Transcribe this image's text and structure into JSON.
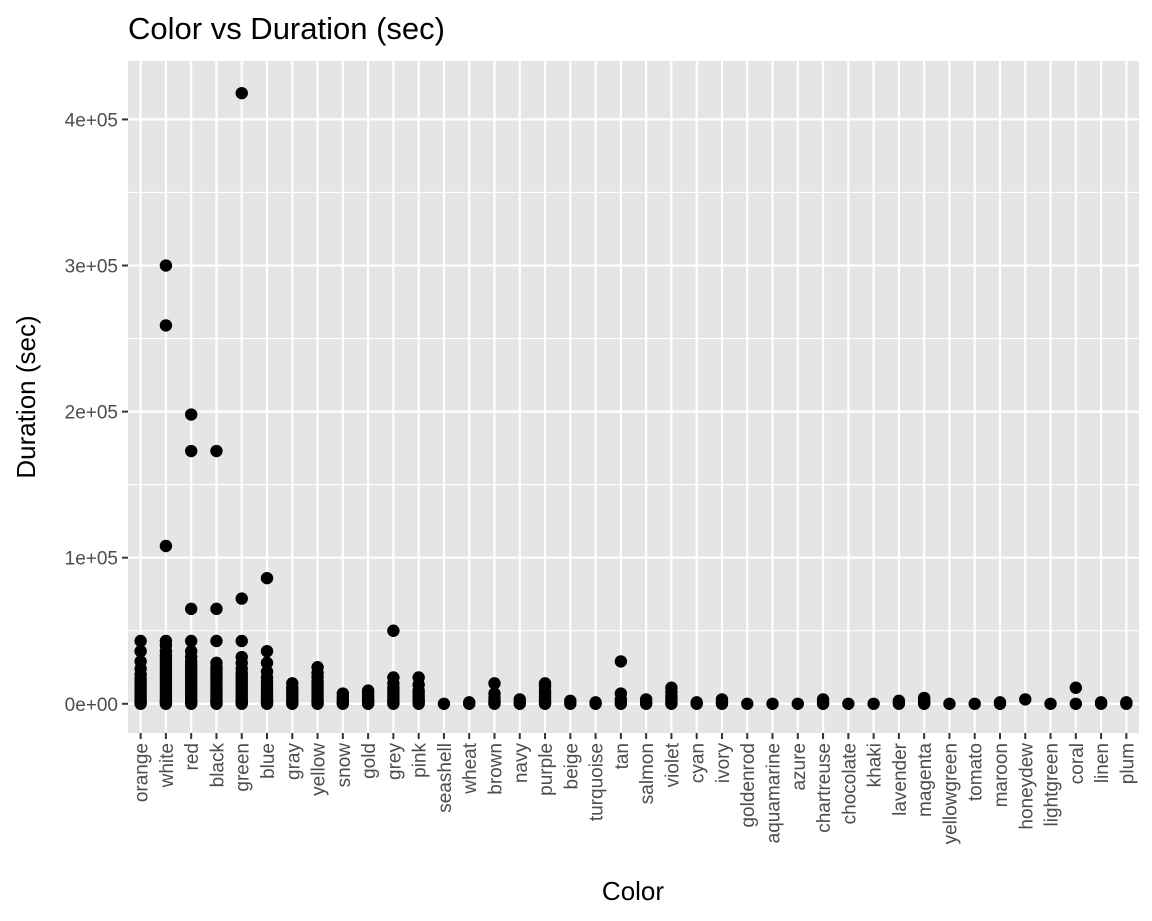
{
  "chart_data": {
    "type": "scatter",
    "title": "Color vs Duration (sec)",
    "xlabel": "Color",
    "ylabel": "Duration (sec)",
    "categories": [
      "orange",
      "white",
      "red",
      "black",
      "green",
      "blue",
      "gray",
      "yellow",
      "snow",
      "gold",
      "grey",
      "pink",
      "seashell",
      "wheat",
      "brown",
      "navy",
      "purple",
      "beige",
      "turquoise",
      "tan",
      "salmon",
      "violet",
      "cyan",
      "ivory",
      "goldenrod",
      "aquamarine",
      "azure",
      "chartreuse",
      "chocolate",
      "khaki",
      "lavender",
      "magenta",
      "yellowgreen",
      "tomato",
      "maroon",
      "honeydew",
      "lightgreen",
      "coral",
      "linen",
      "plum"
    ],
    "ylim": [
      -20000,
      440000
    ],
    "yticks": [
      0,
      100000,
      200000,
      300000,
      400000
    ],
    "ytick_labels": [
      "0e+00",
      "1e+05",
      "2e+05",
      "3e+05",
      "4e+05"
    ],
    "grid": true,
    "point_color": "#000000",
    "panel_background": "#e5e5e5",
    "gridline_color": "#ffffff",
    "series": [
      {
        "category": "orange",
        "values": [
          0,
          1000,
          2000,
          3000,
          5000,
          7000,
          9000,
          11000,
          13000,
          15000,
          17000,
          20000,
          24000,
          29000,
          36000,
          43000
        ]
      },
      {
        "category": "white",
        "values": [
          0,
          1000,
          2000,
          3000,
          5000,
          7000,
          9000,
          11000,
          13000,
          15000,
          17000,
          19000,
          21000,
          23000,
          25000,
          27000,
          29000,
          31000,
          33000,
          36000,
          40000,
          43000,
          108000,
          259000,
          300000
        ]
      },
      {
        "category": "red",
        "values": [
          0,
          1000,
          2000,
          3000,
          5000,
          7000,
          9000,
          11000,
          13000,
          15000,
          17000,
          19000,
          21000,
          23000,
          25000,
          27000,
          29000,
          32000,
          36000,
          43000,
          65000,
          173000,
          198000
        ]
      },
      {
        "category": "black",
        "values": [
          0,
          1000,
          2000,
          3000,
          5000,
          7000,
          9000,
          11000,
          13000,
          15000,
          17000,
          19000,
          21000,
          23000,
          25000,
          28000,
          43000,
          65000,
          173000
        ]
      },
      {
        "category": "green",
        "values": [
          0,
          1000,
          2000,
          3000,
          5000,
          7000,
          9000,
          11000,
          13000,
          15000,
          17000,
          19000,
          21000,
          24000,
          28000,
          32000,
          43000,
          72000,
          418000
        ]
      },
      {
        "category": "blue",
        "values": [
          0,
          1000,
          2000,
          3000,
          5000,
          7000,
          9000,
          11000,
          13000,
          15000,
          18000,
          22000,
          28000,
          36000,
          86000
        ]
      },
      {
        "category": "gray",
        "values": [
          0,
          1000,
          2000,
          3000,
          5000,
          7000,
          9000,
          11000,
          14000
        ]
      },
      {
        "category": "yellow",
        "values": [
          0,
          1000,
          2000,
          3000,
          5000,
          7000,
          9000,
          11000,
          13000,
          15000,
          18000,
          21000,
          25000
        ]
      },
      {
        "category": "snow",
        "values": [
          0,
          1000,
          2000,
          3000,
          5000,
          7000
        ]
      },
      {
        "category": "gold",
        "values": [
          0,
          1000,
          2000,
          3000,
          5000,
          7000,
          9000
        ]
      },
      {
        "category": "grey",
        "values": [
          0,
          1000,
          2000,
          3000,
          5000,
          7000,
          9000,
          11000,
          14000,
          18000,
          50000
        ]
      },
      {
        "category": "pink",
        "values": [
          0,
          1000,
          2000,
          3000,
          5000,
          7000,
          9000,
          13000,
          18000
        ]
      },
      {
        "category": "seashell",
        "values": [
          0
        ]
      },
      {
        "category": "wheat",
        "values": [
          0,
          1000
        ]
      },
      {
        "category": "brown",
        "values": [
          0,
          1000,
          2000,
          4000,
          7000,
          14000
        ]
      },
      {
        "category": "navy",
        "values": [
          0,
          1000,
          3000
        ]
      },
      {
        "category": "purple",
        "values": [
          0,
          1000,
          2000,
          3000,
          5000,
          7000,
          9000,
          12000,
          14000
        ]
      },
      {
        "category": "beige",
        "values": [
          0,
          2000
        ]
      },
      {
        "category": "turquoise",
        "values": [
          0,
          1000
        ]
      },
      {
        "category": "tan",
        "values": [
          0,
          1000,
          3000,
          7000,
          29000
        ]
      },
      {
        "category": "salmon",
        "values": [
          0,
          1000,
          3000
        ]
      },
      {
        "category": "violet",
        "values": [
          0,
          1000,
          3000,
          5000,
          8000,
          11000
        ]
      },
      {
        "category": "cyan",
        "values": [
          0,
          1000
        ]
      },
      {
        "category": "ivory",
        "values": [
          0,
          1000,
          3000
        ]
      },
      {
        "category": "goldenrod",
        "values": [
          0
        ]
      },
      {
        "category": "aquamarine",
        "values": [
          0
        ]
      },
      {
        "category": "azure",
        "values": [
          0
        ]
      },
      {
        "category": "chartreuse",
        "values": [
          0,
          1000,
          3000
        ]
      },
      {
        "category": "chocolate",
        "values": [
          0
        ]
      },
      {
        "category": "khaki",
        "values": [
          0
        ]
      },
      {
        "category": "lavender",
        "values": [
          0,
          1000,
          2000
        ]
      },
      {
        "category": "magenta",
        "values": [
          0,
          1000,
          2000,
          4000
        ]
      },
      {
        "category": "yellowgreen",
        "values": [
          0
        ]
      },
      {
        "category": "tomato",
        "values": [
          0
        ]
      },
      {
        "category": "maroon",
        "values": [
          0,
          1000
        ]
      },
      {
        "category": "honeydew",
        "values": [
          3000
        ]
      },
      {
        "category": "lightgreen",
        "values": [
          0
        ]
      },
      {
        "category": "coral",
        "values": [
          0,
          11000
        ]
      },
      {
        "category": "linen",
        "values": [
          0,
          1000
        ]
      },
      {
        "category": "plum",
        "values": [
          0,
          1000
        ]
      }
    ]
  }
}
